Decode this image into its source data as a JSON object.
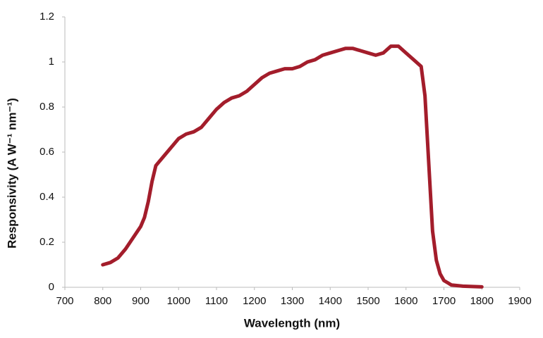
{
  "chart_data": {
    "type": "line",
    "x_label": "Wavelength (nm)",
    "y_label": "Responsivity (A W⁻¹ nm⁻¹)",
    "x": [
      800,
      820,
      840,
      860,
      880,
      900,
      910,
      920,
      930,
      940,
      960,
      980,
      1000,
      1020,
      1040,
      1060,
      1080,
      1100,
      1120,
      1140,
      1160,
      1180,
      1200,
      1220,
      1240,
      1260,
      1280,
      1300,
      1320,
      1340,
      1360,
      1380,
      1400,
      1420,
      1440,
      1460,
      1480,
      1500,
      1520,
      1540,
      1560,
      1580,
      1600,
      1620,
      1640,
      1650,
      1660,
      1670,
      1680,
      1690,
      1700,
      1720,
      1750,
      1800
    ],
    "series": [
      {
        "color": "#a31d2b",
        "values": [
          0.1,
          0.11,
          0.13,
          0.17,
          0.22,
          0.27,
          0.31,
          0.38,
          0.47,
          0.54,
          0.58,
          0.62,
          0.66,
          0.68,
          0.69,
          0.71,
          0.75,
          0.79,
          0.82,
          0.84,
          0.85,
          0.87,
          0.9,
          0.93,
          0.95,
          0.96,
          0.97,
          0.97,
          0.98,
          1.0,
          1.01,
          1.03,
          1.04,
          1.05,
          1.06,
          1.06,
          1.05,
          1.04,
          1.03,
          1.04,
          1.07,
          1.07,
          1.04,
          1.01,
          0.98,
          0.85,
          0.55,
          0.25,
          0.12,
          0.06,
          0.03,
          0.01,
          0.005,
          0.002
        ]
      }
    ],
    "xlim": [
      700,
      1900
    ],
    "xticks": [
      700,
      800,
      900,
      1000,
      1100,
      1200,
      1300,
      1400,
      1500,
      1600,
      1700,
      1800,
      1900
    ],
    "ylim": [
      0,
      1.2
    ],
    "yticks": [
      0,
      0.2,
      0.4,
      0.6,
      0.8,
      1,
      1.2
    ],
    "grid": false
  }
}
